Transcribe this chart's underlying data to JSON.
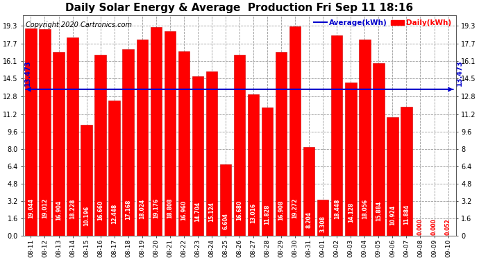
{
  "title": "Daily Solar Energy & Average  Production Fri Sep 11 18:16",
  "copyright": "Copyright 2020 Cartronics.com",
  "legend_avg": "Average(kWh)",
  "legend_daily": "Daily(kWh)",
  "average_value": 13.473,
  "categories": [
    "08-11",
    "08-12",
    "08-13",
    "08-14",
    "08-15",
    "08-16",
    "08-17",
    "08-18",
    "08-19",
    "08-20",
    "08-21",
    "08-22",
    "08-23",
    "08-24",
    "08-25",
    "08-26",
    "08-27",
    "08-28",
    "08-29",
    "08-30",
    "08-31",
    "09-01",
    "09-02",
    "09-03",
    "09-04",
    "09-05",
    "09-06",
    "09-07",
    "09-08",
    "09-09",
    "09-10"
  ],
  "values": [
    19.044,
    19.012,
    16.904,
    18.228,
    10.196,
    16.66,
    12.448,
    17.168,
    18.024,
    19.176,
    18.808,
    16.96,
    14.704,
    15.124,
    6.604,
    16.68,
    13.016,
    11.828,
    16.908,
    19.272,
    8.204,
    3.308,
    18.448,
    14.128,
    18.056,
    15.884,
    10.924,
    11.884,
    0.0,
    0.0,
    0.052
  ],
  "bar_color": "#ff0000",
  "bar_edge_color": "#cc0000",
  "avg_line_color": "#0000cc",
  "background_color": "#ffffff",
  "plot_bg_color": "#ffffff",
  "grid_color": "#999999",
  "title_color": "#000000",
  "copyright_color": "#000000",
  "value_text_color": "#ffffff",
  "value_small_color": "#ff0000",
  "tick_label_color": "#000000",
  "yticks": [
    0.0,
    1.6,
    3.2,
    4.8,
    6.4,
    8.0,
    9.6,
    11.2,
    12.8,
    14.5,
    16.1,
    17.7,
    19.3
  ],
  "ylim": [
    0.0,
    20.3
  ],
  "title_fontsize": 11,
  "copyright_fontsize": 7,
  "value_fontsize": 5.5,
  "xlabel_fontsize": 6.5,
  "ylabel_fontsize": 7,
  "avg_label_fontsize": 7
}
